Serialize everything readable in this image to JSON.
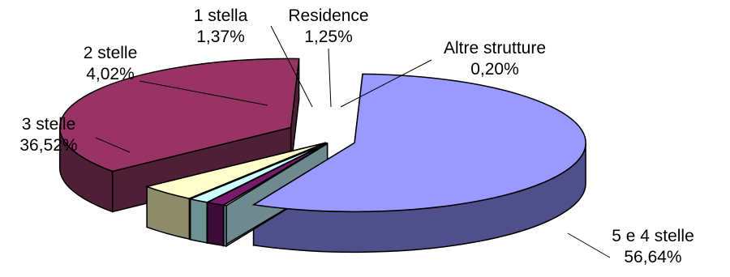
{
  "chart_data": {
    "type": "pie",
    "title": "",
    "three_d": true,
    "exploded": true,
    "slices": [
      {
        "name": "5 e 4 stelle",
        "value_label": "56,64%",
        "value": 56.64,
        "color": "#9999ff",
        "side_color": "#4f4f8c"
      },
      {
        "name": "Altre strutture",
        "value_label": "0,20%",
        "value": 0.2,
        "color": "#d9f2f5",
        "side_color": "#6e8a8f"
      },
      {
        "name": "Residence",
        "value_label": "1,25%",
        "value": 1.25,
        "color": "#7a1a6e",
        "side_color": "#3e0b38"
      },
      {
        "name": "1 stella",
        "value_label": "1,37%",
        "value": 1.37,
        "color": "#ccffff",
        "side_color": "#6c9292"
      },
      {
        "name": "2 stelle",
        "value_label": "4,02%",
        "value": 4.02,
        "color": "#ffffcc",
        "side_color": "#8c8c6a"
      },
      {
        "name": "3 stelle",
        "value_label": "36,52%",
        "value": 36.52,
        "color": "#993366",
        "side_color": "#4f1f36"
      }
    ]
  }
}
